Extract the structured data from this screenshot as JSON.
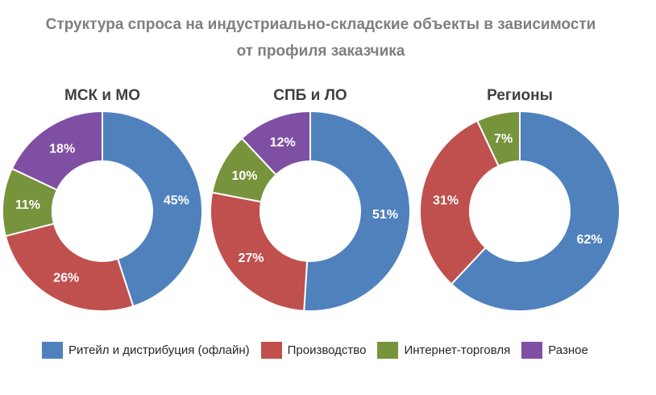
{
  "title": {
    "line1": "Структура спроса на индустриально-складские объекты в зависимости",
    "line2": "от профиля заказчика"
  },
  "colors": {
    "Ритейл и дистрибуция (офлайн)": "#4f81bd",
    "Производство": "#c0504d",
    "Интернет-торговля": "#77933c",
    "Разное": "#7f4fa3"
  },
  "chart_data": [
    {
      "type": "pie",
      "subtype": "donut",
      "title": "МСК и МО",
      "categories": [
        "Ритейл и дистрибуция (офлайн)",
        "Производство",
        "Интернет-торговля",
        "Разное"
      ],
      "values": [
        45,
        26,
        11,
        18
      ],
      "labels": [
        "45%",
        "26%",
        "11%",
        "18%"
      ]
    },
    {
      "type": "pie",
      "subtype": "donut",
      "title": "СПБ и ЛО",
      "categories": [
        "Ритейл и дистрибуция (офлайн)",
        "Производство",
        "Интернет-торговля",
        "Разное"
      ],
      "values": [
        51,
        27,
        10,
        12
      ],
      "labels": [
        "51%",
        "27%",
        "10%",
        "12%"
      ]
    },
    {
      "type": "pie",
      "subtype": "donut",
      "title": "Регионы",
      "categories": [
        "Ритейл и дистрибуция (офлайн)",
        "Производство",
        "Интернет-торговля"
      ],
      "values": [
        62,
        31,
        7
      ],
      "labels": [
        "62%",
        "31%",
        "7%"
      ]
    }
  ],
  "legend": {
    "placement": "bottom",
    "items": [
      {
        "label": "Ритейл и дистрибуция (офлайн)",
        "color": "#4f81bd"
      },
      {
        "label": "Производство",
        "color": "#c0504d"
      },
      {
        "label": "Интернет-торговля",
        "color": "#77933c"
      },
      {
        "label": "Разное",
        "color": "#7f4fa3"
      }
    ]
  }
}
